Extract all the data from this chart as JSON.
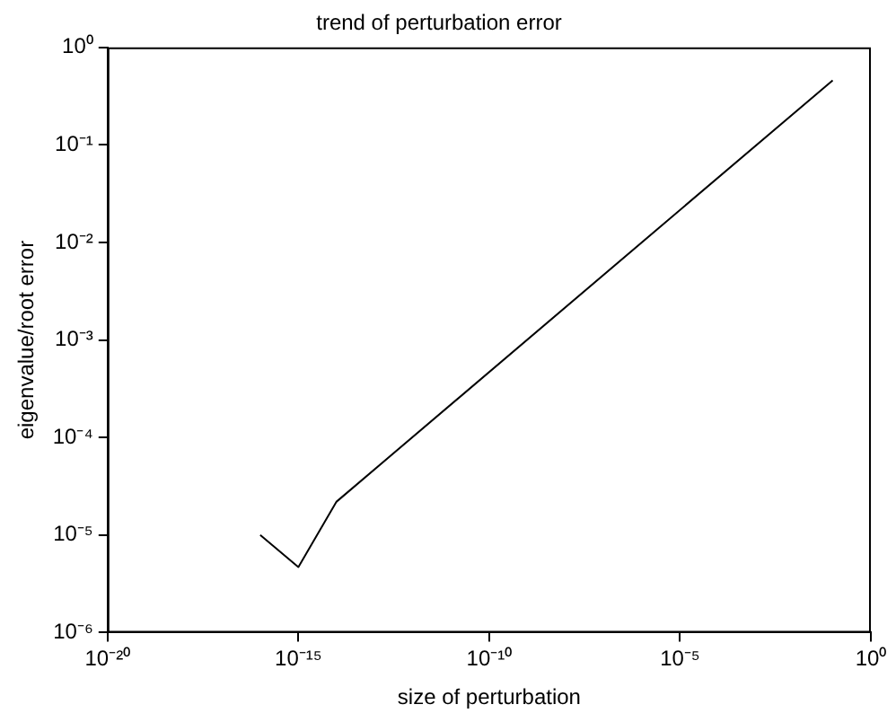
{
  "chart_data": {
    "type": "line",
    "title": "trend of perturbation error",
    "xlabel": "size of perturbation",
    "ylabel": "eigenvalue/root error",
    "log": "xy",
    "grid": false,
    "legend": false,
    "marker": "none",
    "line_style": "solid",
    "xlim": [
      1e-20,
      1
    ],
    "ylim": [
      1e-06,
      1
    ],
    "xticks": [
      {
        "value": 1e-20,
        "label": "10⁻²⁰"
      },
      {
        "value": 1e-15,
        "label": "10⁻¹⁵"
      },
      {
        "value": 1e-10,
        "label": "10⁻¹⁰"
      },
      {
        "value": 1e-05,
        "label": "10⁻⁵"
      },
      {
        "value": 1,
        "label": "10⁰"
      }
    ],
    "yticks": [
      {
        "value": 1e-06,
        "label": "10⁻⁶"
      },
      {
        "value": 1e-05,
        "label": "10⁻⁵"
      },
      {
        "value": 0.0001,
        "label": "10⁻⁴"
      },
      {
        "value": 0.001,
        "label": "10⁻³"
      },
      {
        "value": 0.01,
        "label": "10⁻²"
      },
      {
        "value": 0.1,
        "label": "10⁻¹"
      },
      {
        "value": 1,
        "label": "10⁰"
      }
    ],
    "series": [
      {
        "color": "#000000",
        "x": [
          1e-16,
          1e-15,
          1e-14,
          0.1
        ],
        "values": [
          1e-05,
          4.7e-06,
          2.2e-05,
          0.46
        ]
      }
    ]
  }
}
